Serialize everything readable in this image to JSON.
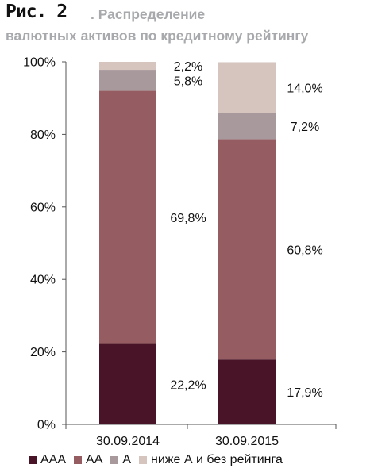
{
  "header": {
    "figure_label": "Рис. 2",
    "title_line1": ". Распределение",
    "title_line2": "валютных активов по кредитному рейтингу"
  },
  "chart_data": {
    "type": "bar",
    "stacked": true,
    "categories": [
      "30.09.2014",
      "30.09.2015"
    ],
    "series": [
      {
        "name": "ААА",
        "color": "#4a1428",
        "values": [
          22.2,
          17.9
        ],
        "labels": [
          "22,2%",
          "17,9%"
        ]
      },
      {
        "name": "АА",
        "color": "#955d62",
        "values": [
          69.8,
          60.8
        ],
        "labels": [
          "69,8%",
          "60,8%"
        ]
      },
      {
        "name": "А",
        "color": "#a8999c",
        "values": [
          5.8,
          7.2
        ],
        "labels": [
          "5,8%",
          "7,2%"
        ]
      },
      {
        "name": "ниже А и без рейтинга",
        "color": "#d5c5be",
        "values": [
          2.2,
          14.0
        ],
        "labels": [
          "2,2%",
          "14,0%"
        ]
      }
    ],
    "ylim": [
      0,
      100
    ],
    "yticks": [
      "0%",
      "20%",
      "40%",
      "60%",
      "80%",
      "100%"
    ],
    "legend_position": "bottom",
    "grid": false
  }
}
